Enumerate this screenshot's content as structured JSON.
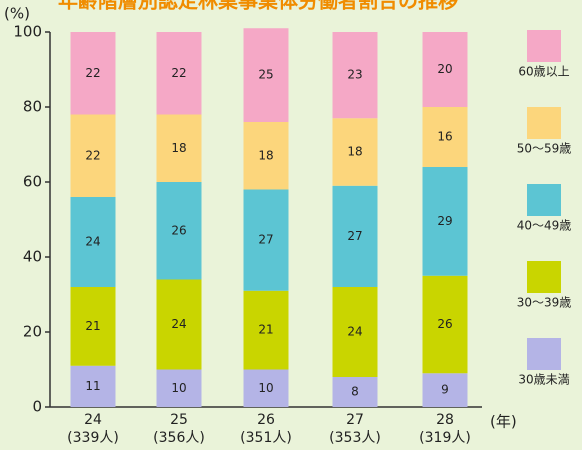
{
  "chart_data": {
    "type": "stacked_bar",
    "title": "年齢階層別認定林業事業体労働者割合の推移",
    "y_unit": "(%)",
    "x_unit": "(年)",
    "categories": [
      "24",
      "25",
      "26",
      "27",
      "28"
    ],
    "counts": [
      "(339人)",
      "(356人)",
      "(351人)",
      "(353人)",
      "(319人)"
    ],
    "series": [
      {
        "name": "30歳未満",
        "color": "#b4b4e6",
        "values": [
          11,
          10,
          10,
          8,
          9
        ]
      },
      {
        "name": "30～39歳",
        "color": "#c9d500",
        "values": [
          21,
          24,
          21,
          24,
          26
        ]
      },
      {
        "name": "40～49歳",
        "color": "#5cc5d3",
        "values": [
          24,
          26,
          27,
          27,
          29
        ]
      },
      {
        "name": "50～59歳",
        "color": "#fcd67c",
        "values": [
          22,
          18,
          18,
          18,
          16
        ]
      },
      {
        "name": "60歳以上",
        "color": "#f5a8c6",
        "values": [
          22,
          22,
          25,
          23,
          20
        ]
      }
    ],
    "ylim": [
      0,
      100
    ],
    "yticks": [
      0,
      20,
      40,
      60,
      80,
      100
    ]
  }
}
